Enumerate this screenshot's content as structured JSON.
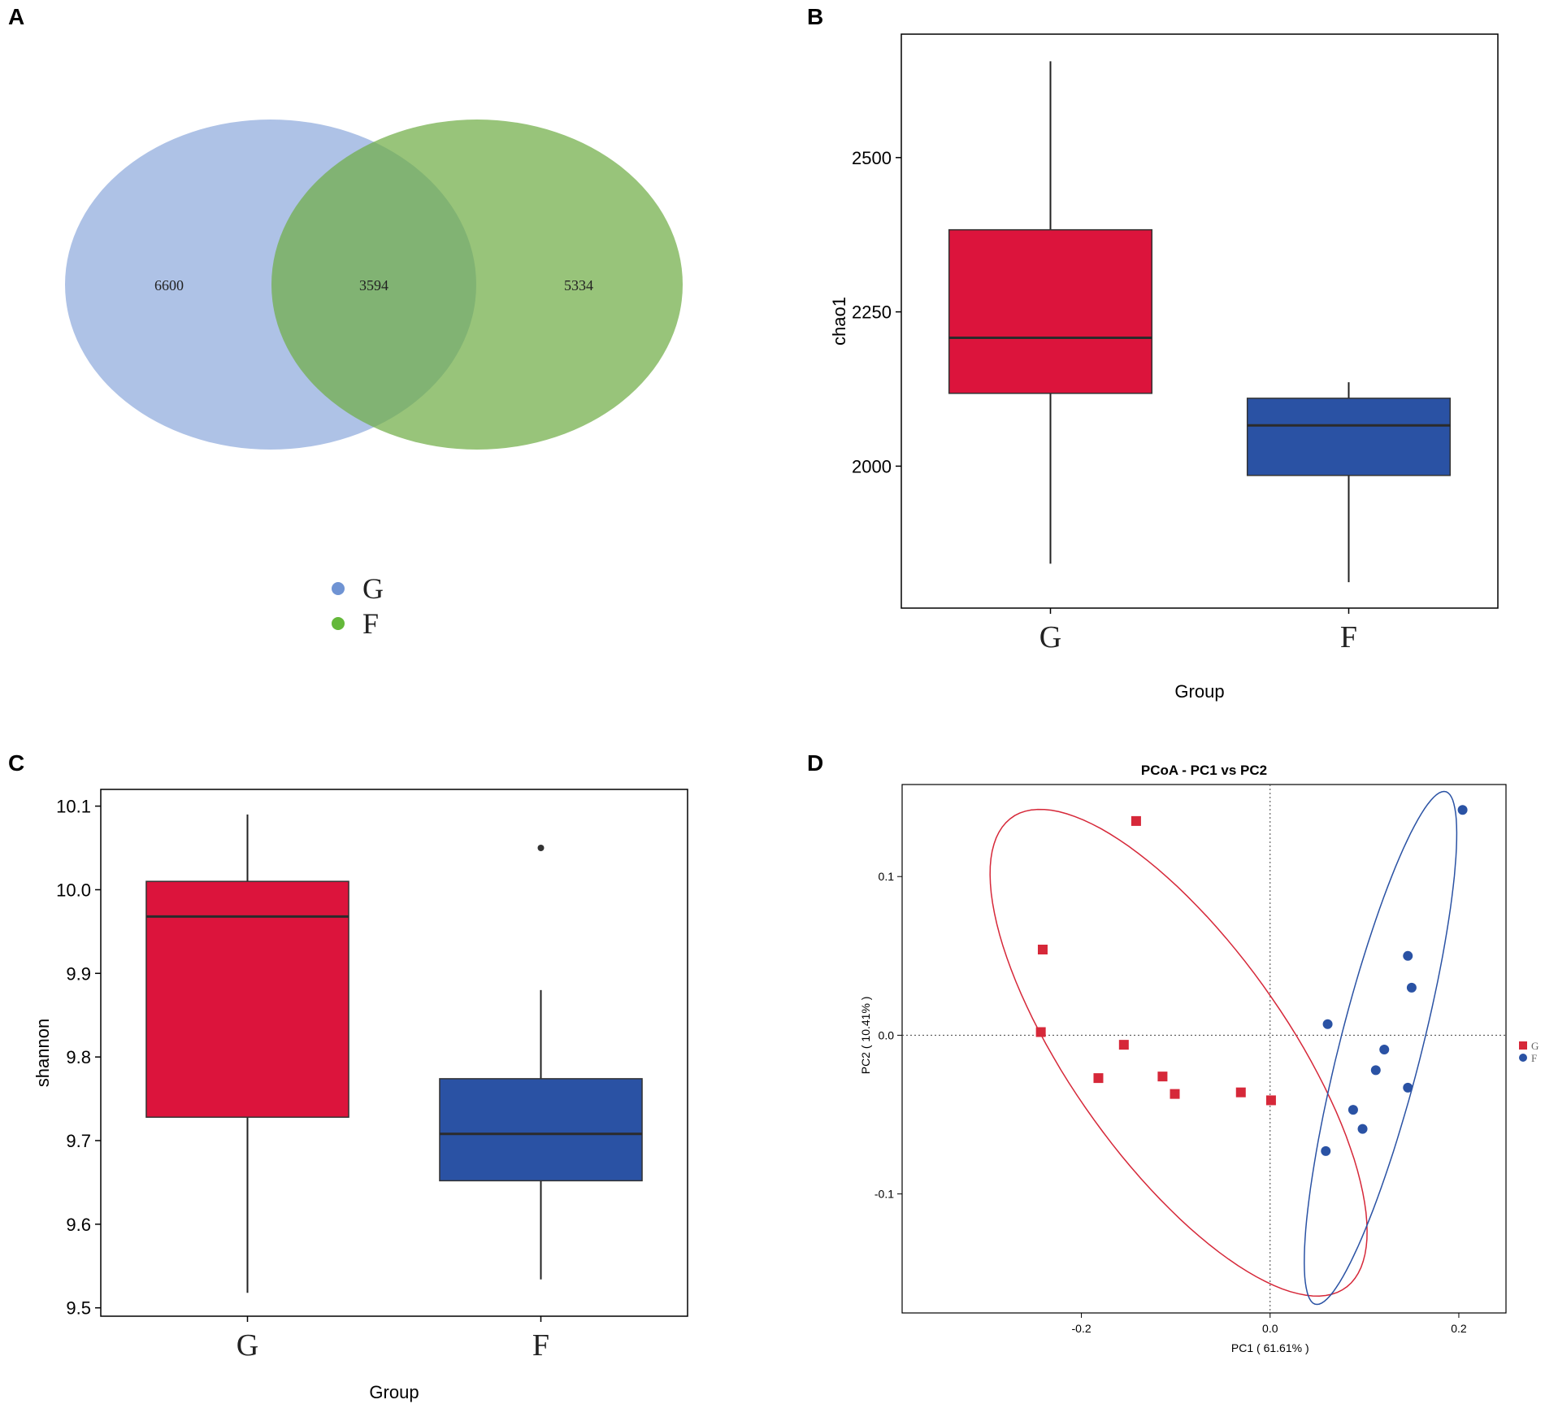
{
  "chart_data": [
    {
      "panel": "A",
      "type": "venn",
      "sets": [
        {
          "name": "G",
          "color": "#8faadc",
          "unique": 6600
        },
        {
          "name": "F",
          "color": "#70ad47",
          "unique": 5334
        }
      ],
      "intersection": 3594,
      "legend": [
        "G",
        "F"
      ]
    },
    {
      "panel": "B",
      "type": "box",
      "xlabel": "Group",
      "ylabel": "chao1",
      "ylim": [
        1770,
        2700
      ],
      "yticks": [
        "2000",
        "2250",
        "2500"
      ],
      "categories": [
        "G",
        "F"
      ],
      "boxes": [
        {
          "name": "G",
          "color": "#dc143c",
          "whisker_low": 1842,
          "q1": 2118,
          "median": 2208,
          "q3": 2383,
          "whisker_high": 2656,
          "outliers": []
        },
        {
          "name": "F",
          "color": "#2a52a4",
          "whisker_low": 1812,
          "q1": 1985,
          "median": 2066,
          "q3": 2110,
          "whisker_high": 2136,
          "outliers": []
        }
      ]
    },
    {
      "panel": "C",
      "type": "box",
      "xlabel": "Group",
      "ylabel": "shannon",
      "ylim": [
        9.49,
        10.12
      ],
      "yticks": [
        "9.5",
        "9.6",
        "9.7",
        "9.8",
        "9.9",
        "10.0",
        "10.1"
      ],
      "categories": [
        "G",
        "F"
      ],
      "boxes": [
        {
          "name": "G",
          "color": "#dc143c",
          "whisker_low": 9.518,
          "q1": 9.728,
          "median": 9.968,
          "q3": 10.01,
          "whisker_high": 10.09,
          "outliers": []
        },
        {
          "name": "F",
          "color": "#2a52a4",
          "whisker_low": 9.534,
          "q1": 9.652,
          "median": 9.708,
          "q3": 9.774,
          "whisker_high": 9.88,
          "outliers": [
            10.05
          ]
        }
      ]
    },
    {
      "panel": "D",
      "type": "scatter",
      "title": "PCoA - PC1 vs PC2",
      "xlabel": "PC1 ( 61.61% )",
      "ylabel": "PC2 ( 10.41% )",
      "xlim": [
        -0.39,
        0.25
      ],
      "ylim": [
        -0.175,
        0.158
      ],
      "xticks": [
        "-0.2",
        "0.0",
        "0.2"
      ],
      "yticks": [
        "-0.1",
        "0.0",
        "0.1"
      ],
      "series": [
        {
          "name": "G",
          "color": "#d62839",
          "marker": "square",
          "points": [
            [
              -0.142,
              0.135
            ],
            [
              -0.241,
              0.054
            ],
            [
              -0.243,
              0.002
            ],
            [
              -0.155,
              -0.006
            ],
            [
              -0.182,
              -0.027
            ],
            [
              -0.114,
              -0.026
            ],
            [
              -0.101,
              -0.037
            ],
            [
              -0.031,
              -0.036
            ],
            [
              0.001,
              -0.041
            ]
          ],
          "ellipse": {
            "cx": -0.097,
            "cy": -0.011,
            "rx": 0.236,
            "ry": 0.088,
            "angle_deg": -35
          }
        },
        {
          "name": "F",
          "color": "#2a52a4",
          "marker": "circle",
          "points": [
            [
              0.204,
              0.142
            ],
            [
              0.146,
              0.05
            ],
            [
              0.15,
              0.03
            ],
            [
              0.061,
              0.007
            ],
            [
              0.121,
              -0.009
            ],
            [
              0.112,
              -0.022
            ],
            [
              0.146,
              -0.033
            ],
            [
              0.088,
              -0.047
            ],
            [
              0.098,
              -0.059
            ],
            [
              0.059,
              -0.073
            ]
          ],
          "ellipse": {
            "cx": 0.117,
            "cy": -0.008,
            "rx": 0.176,
            "ry": 0.041,
            "angle_deg": 66
          }
        }
      ],
      "legend": [
        "G",
        "F"
      ]
    }
  ],
  "panels": {
    "a": "A",
    "b": "B",
    "c": "C",
    "d": "D"
  }
}
